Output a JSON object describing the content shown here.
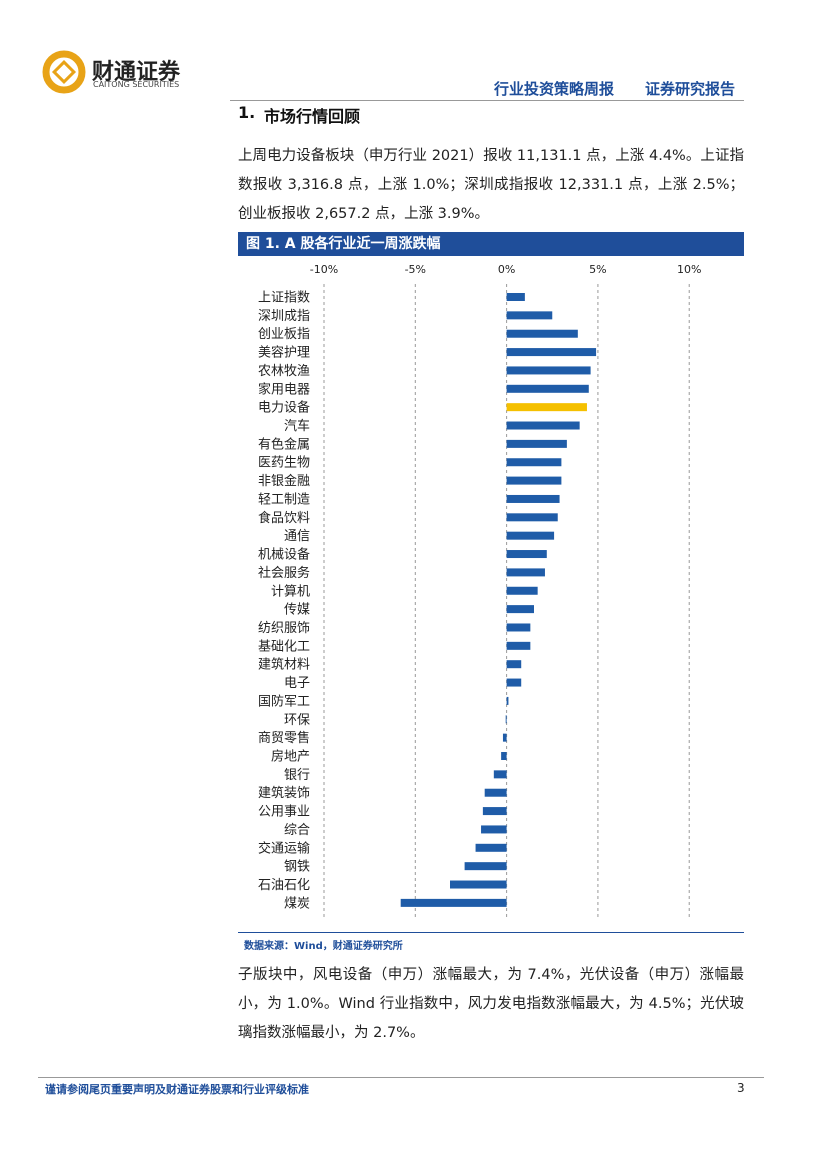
{
  "header": {
    "company_name": "财通证券",
    "company_name_en": "CAITONG SECURITIES",
    "report_type": "行业投资策略周报",
    "report_category": "证券研究报告"
  },
  "section": {
    "number": "1.",
    "title": "市场行情回顾"
  },
  "paragraphs": [
    "上周电力设备板块（申万行业 2021）报收 11,131.1 点，上涨 4.4%。上证指数报收 3,316.8 点，上涨 1.0%；深圳成指报收 12,331.1 点，上涨 2.5%；创业板报收 2,657.2 点，上涨 3.9%。",
    "子版块中，风电设备（申万）涨幅最大，为 7.4%，光伏设备（申万）涨幅最小，为 1.0%。Wind 行业指数中，风力发电指数涨幅最大，为 4.5%；光伏玻璃指数涨幅最小，为 2.7%。"
  ],
  "chart_data": {
    "type": "bar",
    "orientation": "horizontal",
    "title": "图 1. A 股各行业近一周涨跌幅",
    "categories": [
      "上证指数",
      "深圳成指",
      "创业板指",
      "美容护理",
      "农林牧渔",
      "家用电器",
      "电力设备",
      "汽车",
      "有色金属",
      "医药生物",
      "非银金融",
      "轻工制造",
      "食品饮料",
      "通信",
      "机械设备",
      "社会服务",
      "计算机",
      "传媒",
      "纺织服饰",
      "基础化工",
      "建筑材料",
      "电子",
      "国防军工",
      "环保",
      "商贸零售",
      "房地产",
      "银行",
      "建筑装饰",
      "公用事业",
      "综合",
      "交通运输",
      "钢铁",
      "石油石化",
      "煤炭"
    ],
    "values": [
      1.0,
      2.5,
      3.9,
      4.9,
      4.6,
      4.5,
      4.4,
      4.0,
      3.3,
      3.0,
      3.0,
      2.9,
      2.8,
      2.6,
      2.2,
      2.1,
      1.7,
      1.5,
      1.3,
      1.3,
      0.8,
      0.8,
      0.1,
      -0.05,
      -0.2,
      -0.3,
      -0.7,
      -1.2,
      -1.3,
      -1.4,
      -1.7,
      -2.3,
      -3.1,
      -5.8
    ],
    "colors": [
      "#1f5ca8",
      "#1f5ca8",
      "#1f5ca8",
      "#1f5ca8",
      "#1f5ca8",
      "#1f5ca8",
      "#f5c000",
      "#1f5ca8",
      "#1f5ca8",
      "#1f5ca8",
      "#1f5ca8",
      "#1f5ca8",
      "#1f5ca8",
      "#1f5ca8",
      "#1f5ca8",
      "#1f5ca8",
      "#1f5ca8",
      "#1f5ca8",
      "#1f5ca8",
      "#1f5ca8",
      "#1f5ca8",
      "#1f5ca8",
      "#1f5ca8",
      "#1f5ca8",
      "#1f5ca8",
      "#1f5ca8",
      "#1f5ca8",
      "#1f5ca8",
      "#1f5ca8",
      "#1f5ca8",
      "#1f5ca8",
      "#1f5ca8",
      "#1f5ca8",
      "#1f5ca8"
    ],
    "xlim": [
      -10,
      13
    ],
    "xticks": [
      {
        "value": -10,
        "label": "-10%"
      },
      {
        "value": -5,
        "label": "-5%"
      },
      {
        "value": 0,
        "label": "0%"
      },
      {
        "value": 5,
        "label": "5%"
      },
      {
        "value": 10,
        "label": "10%"
      }
    ],
    "grid": true,
    "source": "数据来源：Wind，财通证券研究所"
  },
  "footer": {
    "disclaimer": "谨请参阅尾页重要声明及财通证券股票和行业评级标准",
    "page_number": "3"
  }
}
